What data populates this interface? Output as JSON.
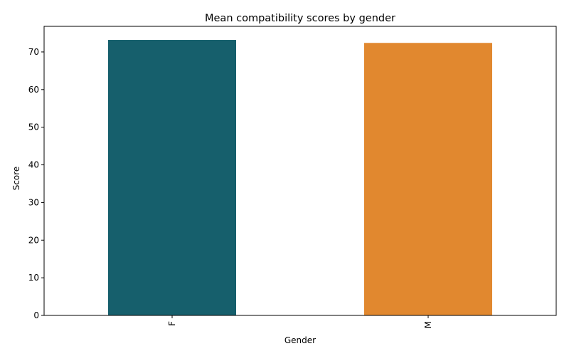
{
  "chart_data": {
    "type": "bar",
    "title": "Mean compatibility scores by gender",
    "xlabel": "Gender",
    "ylabel": "Score",
    "categories": [
      "F",
      "M"
    ],
    "values": [
      73.2,
      72.4
    ],
    "colors": [
      "#165f6c",
      "#e1882f"
    ],
    "ylim": [
      0,
      76.8
    ],
    "yticks": [
      0,
      10,
      20,
      30,
      40,
      50,
      60,
      70
    ],
    "grid": false,
    "legend": "none",
    "xtick_rotation": 90
  }
}
